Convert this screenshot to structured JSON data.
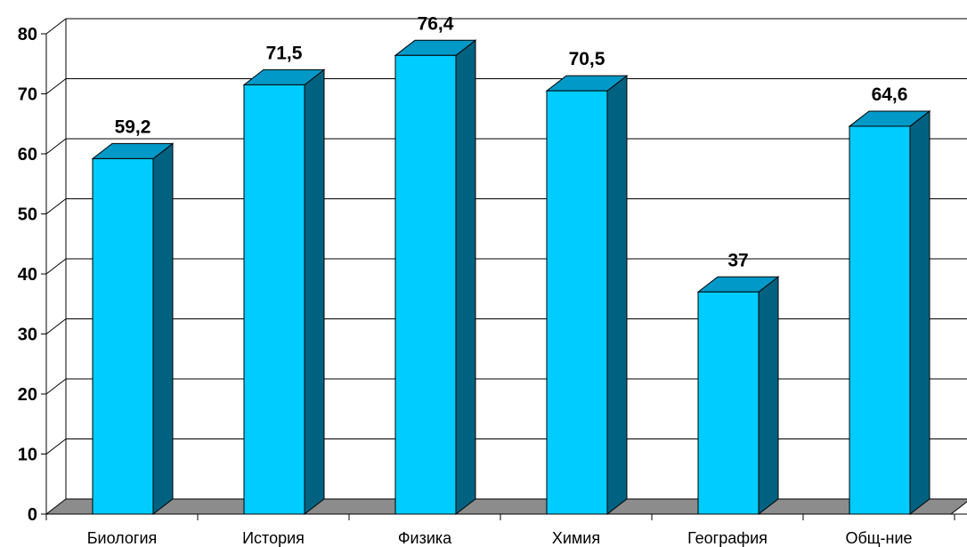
{
  "chart_data": {
    "type": "bar",
    "categories": [
      "Биология",
      "История",
      "Физика",
      "Химия",
      "География",
      "Общ-ние"
    ],
    "values": [
      59.2,
      71.5,
      76.4,
      70.5,
      37,
      64.6
    ],
    "data_labels": [
      "59,2",
      "71,5",
      "76,4",
      "70,5",
      "37",
      "64,6"
    ],
    "title": "",
    "xlabel": "",
    "ylabel": "",
    "ylim": [
      0,
      80
    ],
    "y_ticks": [
      "0",
      "10",
      "20",
      "30",
      "40",
      "50",
      "60",
      "70",
      "80"
    ],
    "grid": true,
    "legend": "none",
    "style": "3d-column"
  },
  "colors": {
    "bar_front": "#00ccff",
    "bar_side": "#006280",
    "bar_top": "#0099c8",
    "floor": "#8c8c8c",
    "grid": "#000000"
  }
}
